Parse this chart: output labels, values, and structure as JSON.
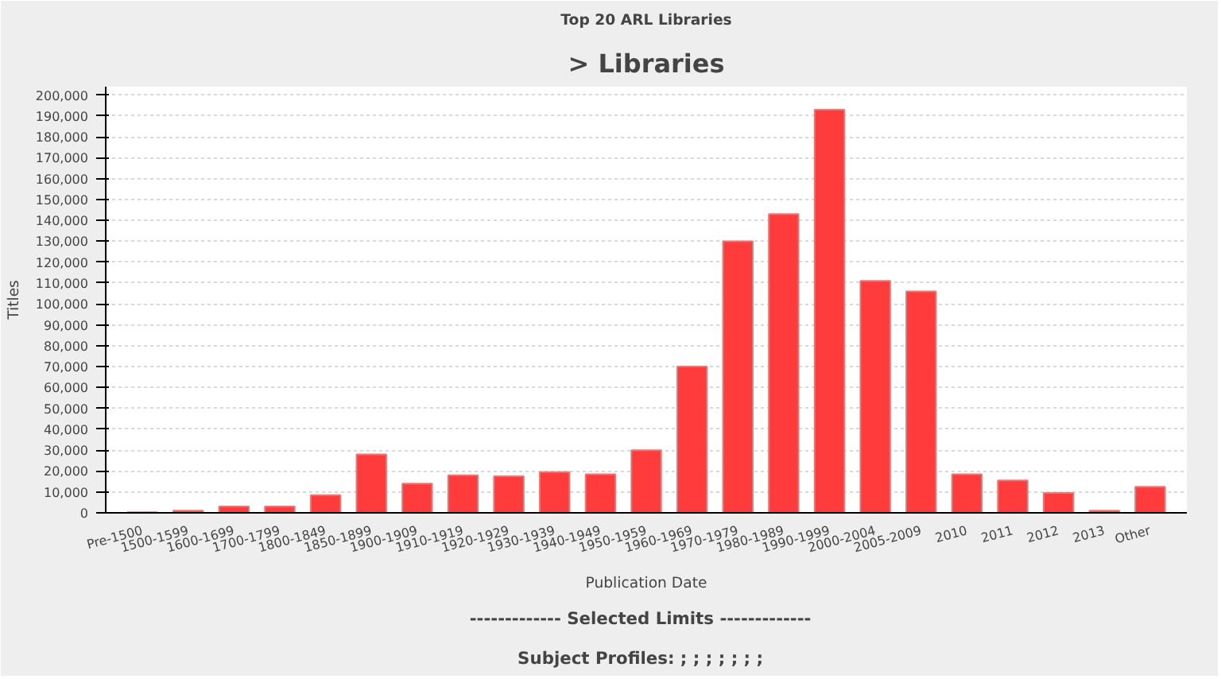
{
  "chart_data": {
    "type": "bar",
    "title": "Top 20 ARL Libraries",
    "subtitle": "> Libraries",
    "xlabel": "Publication Date",
    "ylabel": "Titles",
    "categories": [
      "Pre-1500",
      "1500-1599",
      "1600-1699",
      "1700-1799",
      "1800-1849",
      "1850-1899",
      "1900-1909",
      "1910-1919",
      "1920-1929",
      "1930-1939",
      "1940-1949",
      "1950-1959",
      "1960-1969",
      "1970-1979",
      "1980-1989",
      "1990-1999",
      "2000-2004",
      "2005-2009",
      "2010",
      "2011",
      "2012",
      "2013",
      "Other"
    ],
    "values": [
      300,
      1000,
      3000,
      3000,
      8500,
      28000,
      14000,
      18000,
      17500,
      19500,
      18500,
      30000,
      70000,
      130000,
      143000,
      193000,
      111000,
      106000,
      18500,
      15500,
      9500,
      1000,
      12500
    ],
    "color": "#ff3b3b",
    "ylim": [
      0,
      204000
    ],
    "yticks": [
      {
        "value": 0,
        "label": "0"
      },
      {
        "value": 10000,
        "label": "10,000"
      },
      {
        "value": 20000,
        "label": "20,000"
      },
      {
        "value": 30000,
        "label": "30,000"
      },
      {
        "value": 40000,
        "label": "40,000"
      },
      {
        "value": 50000,
        "label": "50,000"
      },
      {
        "value": 60000,
        "label": "60,000"
      },
      {
        "value": 70000,
        "label": "70,000"
      },
      {
        "value": 80000,
        "label": "80,000"
      },
      {
        "value": 90000,
        "label": "90,000"
      },
      {
        "value": 100000,
        "label": "100,000"
      },
      {
        "value": 110000,
        "label": "110,000"
      },
      {
        "value": 120000,
        "label": "120,000"
      },
      {
        "value": 130000,
        "label": "130,000"
      },
      {
        "value": 140000,
        "label": "140,000"
      },
      {
        "value": 150000,
        "label": "150,000"
      },
      {
        "value": 160000,
        "label": "160,000"
      },
      {
        "value": 170000,
        "label": "170,000"
      },
      {
        "value": 180000,
        "label": "180,000"
      },
      {
        "value": 190000,
        "label": "190,000"
      },
      {
        "value": 200000,
        "label": "200,000"
      }
    ],
    "grid": "y",
    "annotations": [
      "-------------  Selected Limits  -------------",
      "Subject Profiles:   ; ; ; ; ; ; ;"
    ]
  }
}
